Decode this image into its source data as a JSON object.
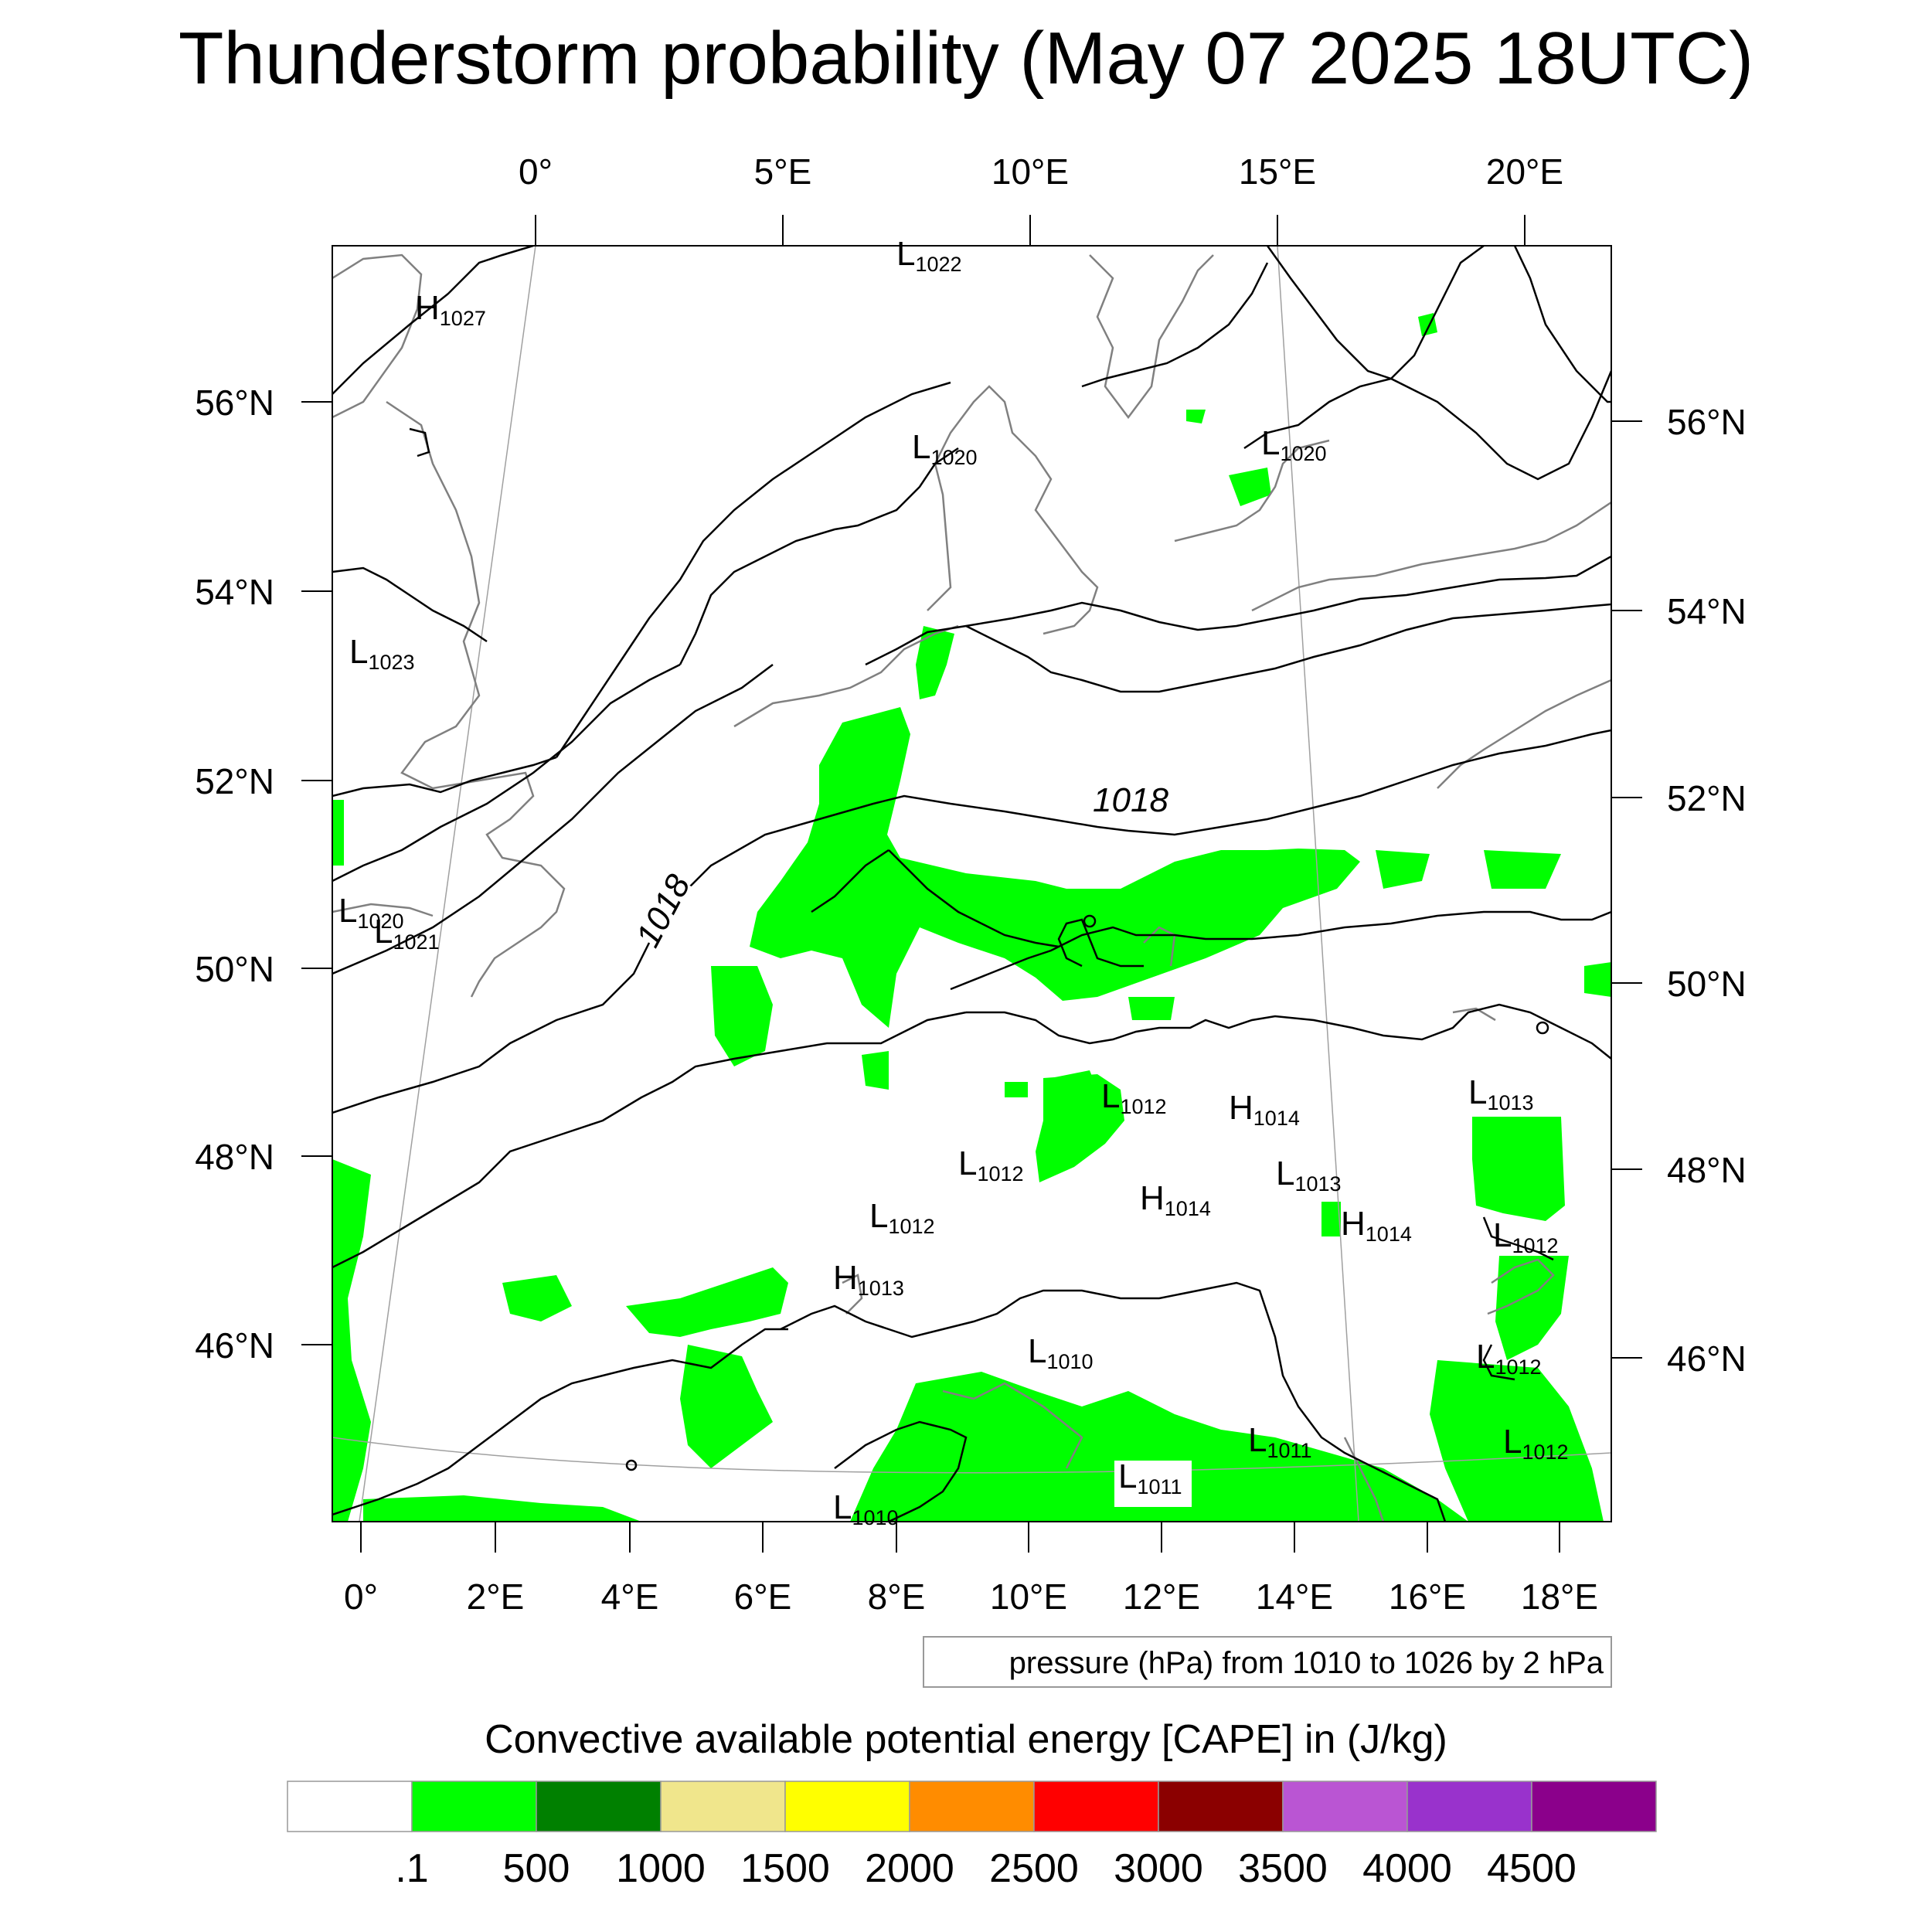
{
  "title": "Thunderstorm probability (May 07 2025 18UTC)",
  "top_lon_labels": [
    "0°",
    "5°E",
    "10°E",
    "15°E",
    "20°E"
  ],
  "bottom_lon_labels": [
    "0°",
    "2°E",
    "4°E",
    "6°E",
    "8°E",
    "10°E",
    "12°E",
    "14°E",
    "16°E",
    "18°E"
  ],
  "left_lat_labels": [
    "56°N",
    "54°N",
    "52°N",
    "50°N",
    "48°N",
    "46°N"
  ],
  "right_lat_labels": [
    "56°N",
    "54°N",
    "52°N",
    "50°N",
    "48°N",
    "46°N"
  ],
  "contour_note": "pressure (hPa) from 1010 to 1026 by 2 hPa",
  "contour_labels": [
    "1018",
    "1018"
  ],
  "pressure_centers": [
    {
      "type": "L",
      "value": "1022"
    },
    {
      "type": "H",
      "value": "1027"
    },
    {
      "type": "L",
      "value": "1020"
    },
    {
      "type": "L",
      "value": "1020"
    },
    {
      "type": "L",
      "value": "1023"
    },
    {
      "type": "L",
      "value": "1020"
    },
    {
      "type": "L",
      "value": "1021"
    },
    {
      "type": "L",
      "value": "1012"
    },
    {
      "type": "H",
      "value": "1014"
    },
    {
      "type": "L",
      "value": "1013"
    },
    {
      "type": "L",
      "value": "1012"
    },
    {
      "type": "H",
      "value": "1014"
    },
    {
      "type": "L",
      "value": "1013"
    },
    {
      "type": "H",
      "value": "1014"
    },
    {
      "type": "L",
      "value": "1012"
    },
    {
      "type": "L",
      "value": "1012"
    },
    {
      "type": "H",
      "value": "1013"
    },
    {
      "type": "L",
      "value": "1010"
    },
    {
      "type": "L",
      "value": "1012"
    },
    {
      "type": "L",
      "value": "1011"
    },
    {
      "type": "L",
      "value": "1011"
    },
    {
      "type": "L",
      "value": "1012"
    },
    {
      "type": "L",
      "value": "1010"
    }
  ],
  "colorbar": {
    "title": "Convective available potential energy [CAPE] in (J/kg)",
    "colors": [
      "#ffffff",
      "#00ff00",
      "#008000",
      "#f0e68c",
      "#ffff00",
      "#ff8c00",
      "#ff0000",
      "#8b0000",
      "#ba55d3",
      "#9932cc",
      "#8b008b"
    ],
    "labels": [
      ".1",
      "500",
      "1000",
      "1500",
      "2000",
      "2500",
      "3000",
      "3500",
      "4000",
      "4500"
    ]
  },
  "colors": {
    "cape_low": "#00ff00",
    "coastline": "#808080",
    "isobar": "#000000",
    "graticule": "#a0a0a0"
  }
}
